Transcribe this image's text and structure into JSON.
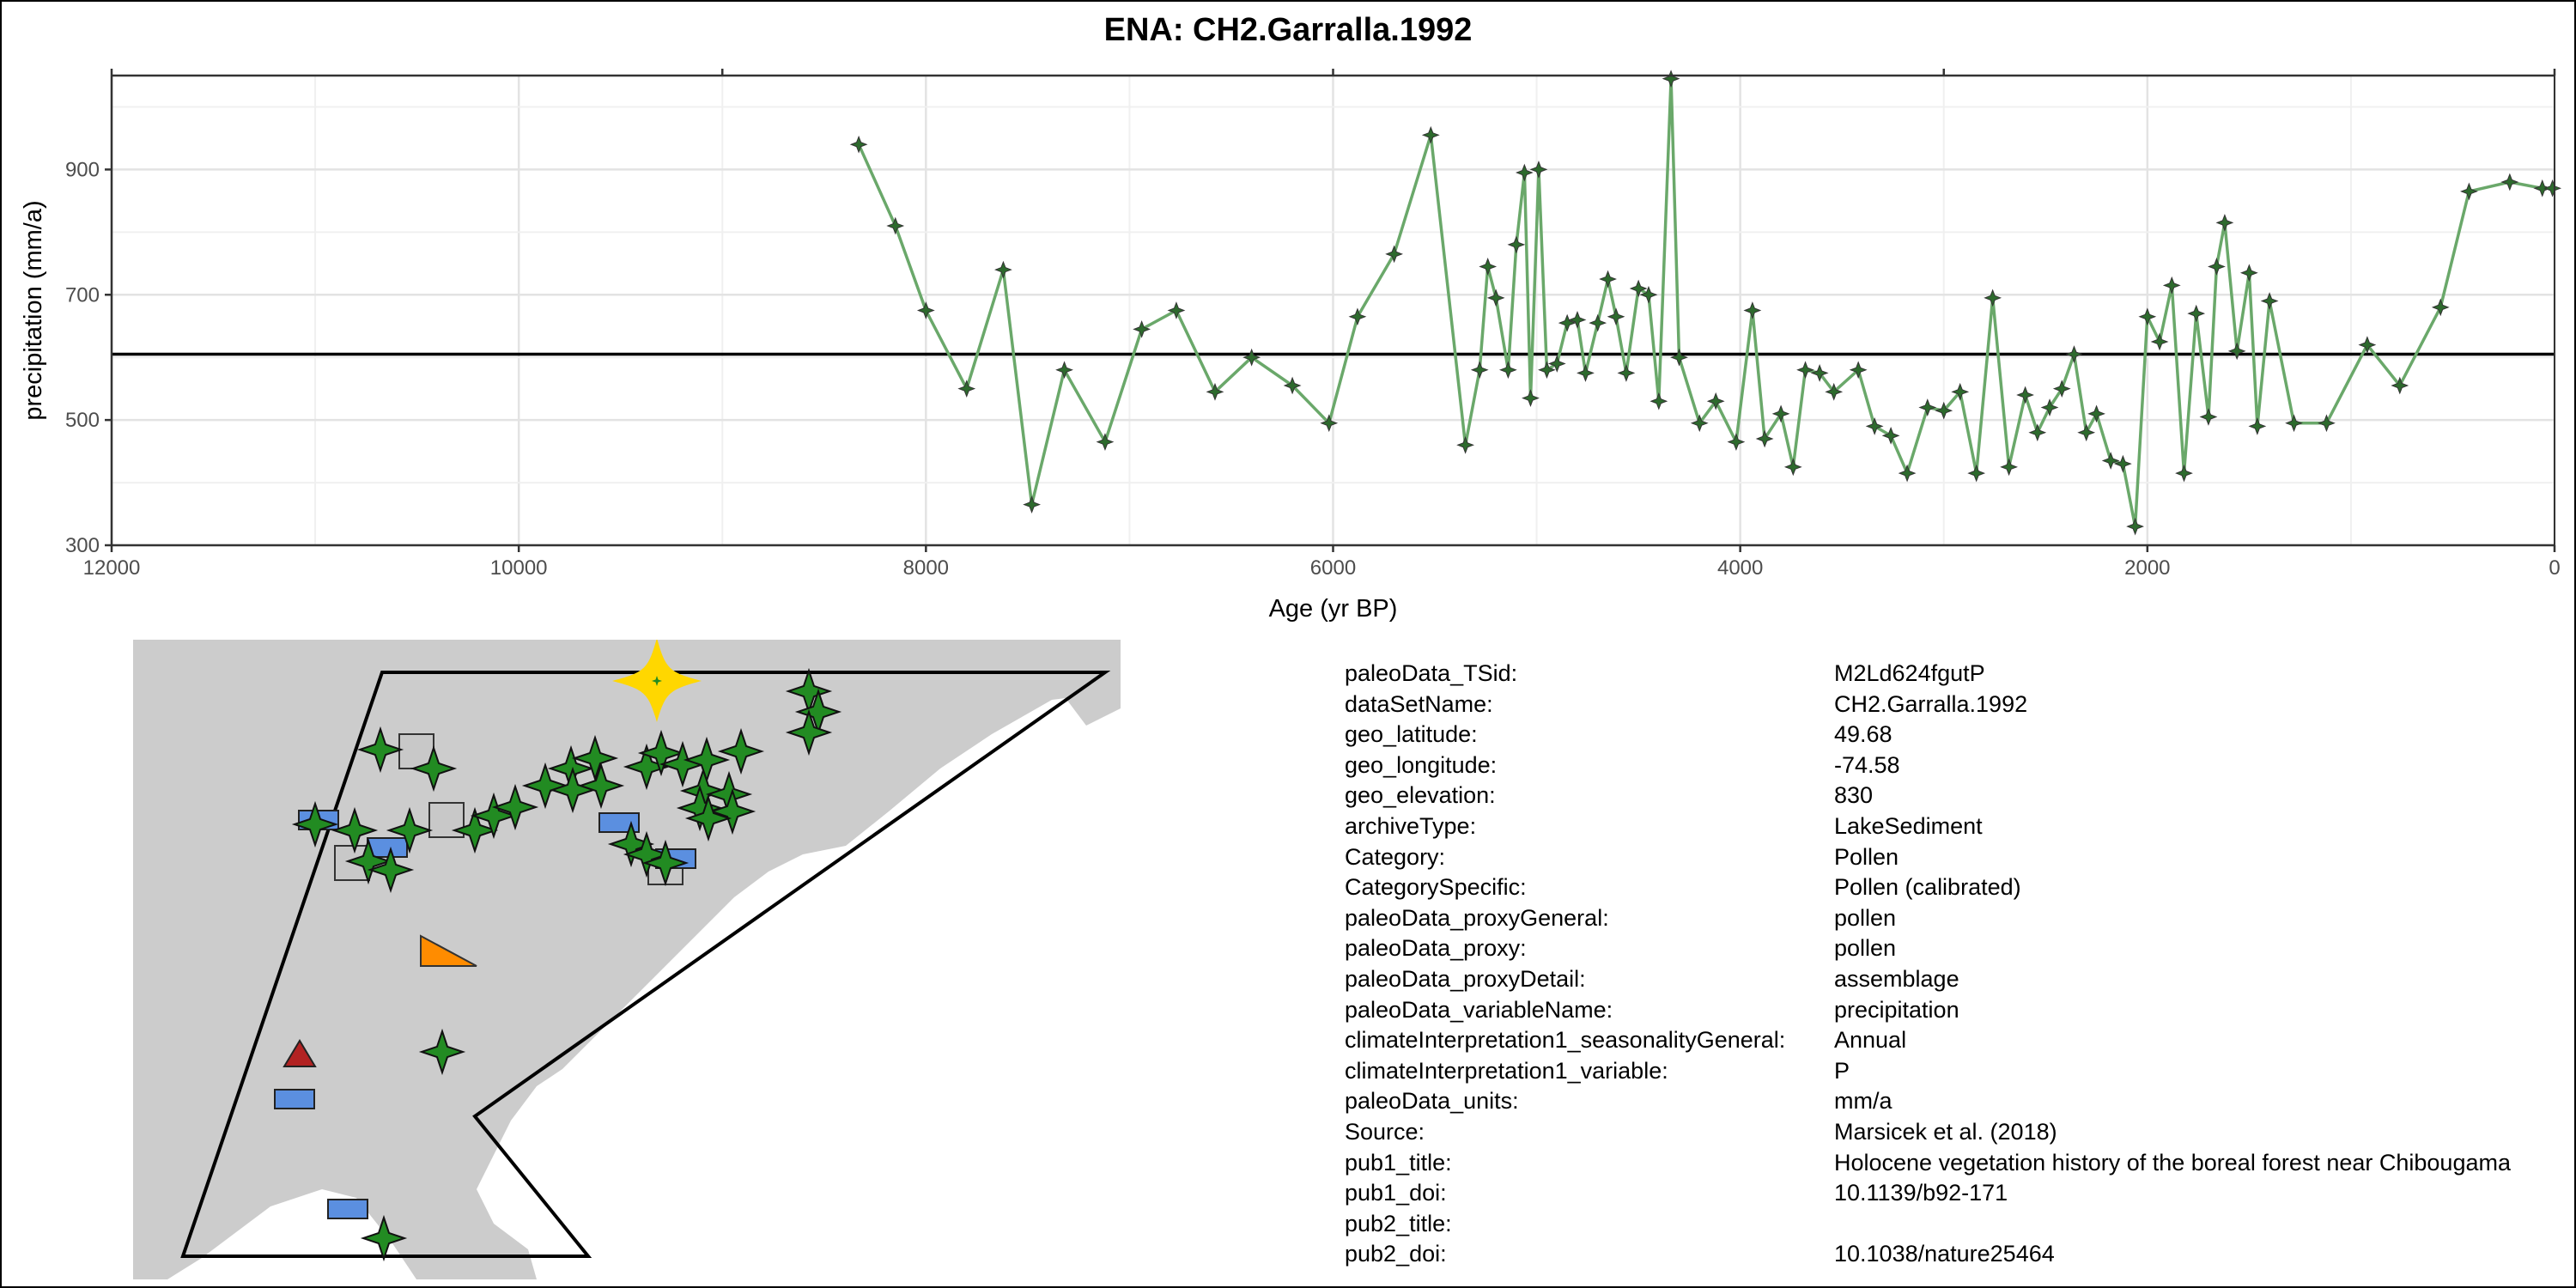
{
  "title": "ENA: CH2.Garralla.1992",
  "chart_data": {
    "type": "line",
    "title": "ENA: CH2.Garralla.1992",
    "xlabel": "Age (yr BP)",
    "ylabel": "precipitation (mm/a)",
    "xlim": [
      12000,
      0
    ],
    "ylim": [
      300,
      1050
    ],
    "x_reversed": true,
    "x_ticks": [
      12000,
      10000,
      8000,
      6000,
      4000,
      2000,
      0
    ],
    "y_ticks": [
      300,
      500,
      700,
      900
    ],
    "reference_line": 605,
    "grid": true,
    "line_color": "#6aa86a",
    "marker_color": "#2d6a2d",
    "ref_color": "#000000",
    "series": [
      {
        "x": [
          8330,
          8150,
          8000,
          7800,
          7620,
          7480,
          7320,
          7120,
          6940,
          6770,
          6580,
          6400,
          6200,
          6020,
          5880,
          5700,
          5520,
          5350,
          5280,
          5240,
          5200,
          5140,
          5100,
          5060,
          5030,
          4990,
          4950,
          4900,
          4850,
          4800,
          4760,
          4700,
          4650,
          4610,
          4560,
          4500,
          4450,
          4400,
          4340,
          4300,
          4200,
          4120,
          4020,
          3940,
          3880,
          3800,
          3740,
          3680,
          3610,
          3540,
          3420,
          3340,
          3260,
          3180,
          3080,
          3000,
          2920,
          2840,
          2760,
          2680,
          2600,
          2540,
          2480,
          2420,
          2360,
          2300,
          2250,
          2180,
          2120,
          2060,
          2000,
          1940,
          1880,
          1820,
          1760,
          1700,
          1660,
          1620,
          1560,
          1500,
          1460,
          1400,
          1280,
          1120,
          920,
          760,
          560,
          420,
          220,
          60,
          10
        ],
        "y": [
          940,
          810,
          675,
          550,
          740,
          365,
          580,
          465,
          645,
          675,
          545,
          600,
          555,
          495,
          665,
          765,
          955,
          460,
          580,
          745,
          695,
          580,
          780,
          895,
          535,
          900,
          580,
          590,
          655,
          660,
          575,
          655,
          725,
          665,
          575,
          710,
          700,
          530,
          1045,
          600,
          495,
          530,
          465,
          675,
          470,
          510,
          425,
          580,
          575,
          545,
          580,
          490,
          475,
          415,
          520,
          515,
          545,
          415,
          695,
          425,
          540,
          480,
          520,
          550,
          605,
          480,
          510,
          435,
          430,
          330,
          665,
          625,
          715,
          415,
          670,
          505,
          745,
          815,
          610,
          735,
          490,
          690,
          495,
          495,
          620,
          555,
          680,
          865,
          880,
          870,
          870
        ]
      }
    ]
  },
  "metadata": [
    {
      "key": "paleoData_TSid:",
      "value": "M2Ld624fgutP"
    },
    {
      "key": "dataSetName:",
      "value": "CH2.Garralla.1992"
    },
    {
      "key": "geo_latitude:",
      "value": "49.68"
    },
    {
      "key": "geo_longitude:",
      "value": "-74.58"
    },
    {
      "key": "geo_elevation:",
      "value": "830"
    },
    {
      "key": "archiveType:",
      "value": "LakeSediment"
    },
    {
      "key": "Category:",
      "value": "Pollen"
    },
    {
      "key": "CategorySpecific:",
      "value": "Pollen (calibrated)"
    },
    {
      "key": "paleoData_proxyGeneral:",
      "value": "pollen"
    },
    {
      "key": "paleoData_proxy:",
      "value": "pollen"
    },
    {
      "key": "paleoData_proxyDetail:",
      "value": "assemblage"
    },
    {
      "key": "paleoData_variableName:",
      "value": "precipitation"
    },
    {
      "key": "climateInterpretation1_seasonalityGeneral:",
      "value": "Annual"
    },
    {
      "key": "climateInterpretation1_variable:",
      "value": "P"
    },
    {
      "key": "paleoData_units:",
      "value": "mm/a"
    },
    {
      "key": "Source:",
      "value": "Marsicek et al. (2018)"
    },
    {
      "key": "pub1_title:",
      "value": "Holocene vegetation history of the boreal forest near Chibougama"
    },
    {
      "key": "pub1_doi:",
      "value": "10.1139/b92-171"
    },
    {
      "key": "pub2_title:",
      "value": ""
    },
    {
      "key": "pub2_doi:",
      "value": "10.1038/nature25464"
    }
  ],
  "map": {
    "land_color": "#cccccc",
    "ocean_color": "#ffffff",
    "highlight_color": "#ffd700",
    "star_color": "#228b22",
    "square_color": "#c8c8c8",
    "rect_color": "#5b8fe0",
    "triangle_red": "#b22222",
    "triangle_orange": "#ff8c00"
  }
}
